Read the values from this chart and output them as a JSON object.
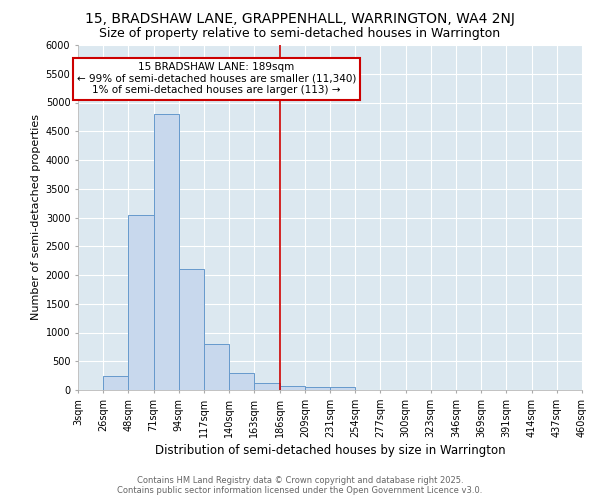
{
  "title1": "15, BRADSHAW LANE, GRAPPENHALL, WARRINGTON, WA4 2NJ",
  "title2": "Size of property relative to semi-detached houses in Warrington",
  "xlabel": "Distribution of semi-detached houses by size in Warrington",
  "ylabel": "Number of semi-detached properties",
  "bin_labels": [
    "3sqm",
    "26sqm",
    "48sqm",
    "71sqm",
    "94sqm",
    "117sqm",
    "140sqm",
    "163sqm",
    "186sqm",
    "209sqm",
    "231sqm",
    "254sqm",
    "277sqm",
    "300sqm",
    "323sqm",
    "346sqm",
    "369sqm",
    "391sqm",
    "414sqm",
    "437sqm",
    "460sqm"
  ],
  "bar_heights": [
    0,
    250,
    3050,
    4800,
    2100,
    800,
    300,
    130,
    70,
    60,
    50,
    0,
    0,
    0,
    0,
    0,
    0,
    0,
    0,
    0
  ],
  "bar_color": "#c8d8ed",
  "bar_edge_color": "#6699cc",
  "vline_color": "#cc0000",
  "vline_bin_index": 8,
  "annotation_line1": "15 BRADSHAW LANE: 189sqm",
  "annotation_line2": "← 99% of semi-detached houses are smaller (11,340)",
  "annotation_line3": "1% of semi-detached houses are larger (113) →",
  "annotation_box_facecolor": "#ffffff",
  "annotation_box_edgecolor": "#cc0000",
  "ylim": [
    0,
    6000
  ],
  "yticks": [
    0,
    500,
    1000,
    1500,
    2000,
    2500,
    3000,
    3500,
    4000,
    4500,
    5000,
    5500,
    6000
  ],
  "plot_bg_color": "#dce8f0",
  "fig_bg_color": "#ffffff",
  "grid_color": "#ffffff",
  "footer_text": "Contains HM Land Registry data © Crown copyright and database right 2025.\nContains public sector information licensed under the Open Government Licence v3.0.",
  "title1_fontsize": 10,
  "title2_fontsize": 9,
  "xlabel_fontsize": 8.5,
  "ylabel_fontsize": 8,
  "tick_fontsize": 7,
  "annotation_fontsize": 7.5,
  "footer_fontsize": 6
}
